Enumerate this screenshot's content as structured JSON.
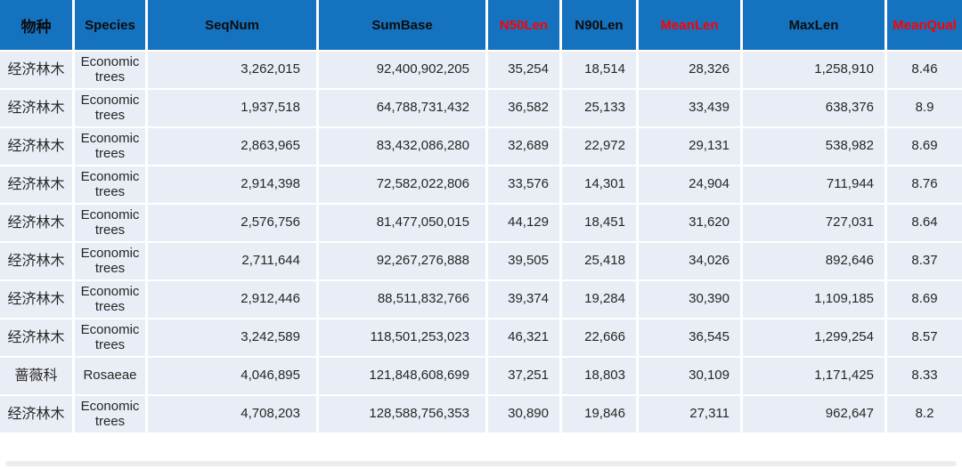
{
  "colors": {
    "header_bg": "#1572be",
    "header_text_black": "#0c0c0c",
    "header_text_red": "#ff0000",
    "row_bg": "#e9eef6",
    "cell_text": "#262626",
    "gridline": "#ffffff"
  },
  "table": {
    "columns": [
      {
        "key": "species_cn",
        "label": "物种",
        "red": false,
        "cn": true
      },
      {
        "key": "species_en",
        "label": "Species",
        "red": false,
        "cn": false
      },
      {
        "key": "seqnum",
        "label": "SeqNum",
        "red": false,
        "cn": false
      },
      {
        "key": "sumbase",
        "label": "SumBase",
        "red": false,
        "cn": false
      },
      {
        "key": "n50len",
        "label": "N50Len",
        "red": true,
        "cn": false
      },
      {
        "key": "n90len",
        "label": "N90Len",
        "red": false,
        "cn": false
      },
      {
        "key": "meanlen",
        "label": "MeanLen",
        "red": true,
        "cn": false
      },
      {
        "key": "maxlen",
        "label": "MaxLen",
        "red": false,
        "cn": false
      },
      {
        "key": "meanqual",
        "label": "MeanQual",
        "red": true,
        "cn": false
      }
    ],
    "rows": [
      {
        "species_cn": "经济林木",
        "species_en": "Economic trees",
        "seqnum": "3,262,015",
        "sumbase": "92,400,902,205",
        "n50len": "35,254",
        "n90len": "18,514",
        "meanlen": "28,326",
        "maxlen": "1,258,910",
        "meanqual": "8.46"
      },
      {
        "species_cn": "经济林木",
        "species_en": "Economic trees",
        "seqnum": "1,937,518",
        "sumbase": "64,788,731,432",
        "n50len": "36,582",
        "n90len": "25,133",
        "meanlen": "33,439",
        "maxlen": "638,376",
        "meanqual": "8.9"
      },
      {
        "species_cn": "经济林木",
        "species_en": "Economic trees",
        "seqnum": "2,863,965",
        "sumbase": "83,432,086,280",
        "n50len": "32,689",
        "n90len": "22,972",
        "meanlen": "29,131",
        "maxlen": "538,982",
        "meanqual": "8.69"
      },
      {
        "species_cn": "经济林木",
        "species_en": "Economic trees",
        "seqnum": "2,914,398",
        "sumbase": "72,582,022,806",
        "n50len": "33,576",
        "n90len": "14,301",
        "meanlen": "24,904",
        "maxlen": "711,944",
        "meanqual": "8.76"
      },
      {
        "species_cn": "经济林木",
        "species_en": "Economic trees",
        "seqnum": "2,576,756",
        "sumbase": "81,477,050,015",
        "n50len": "44,129",
        "n90len": "18,451",
        "meanlen": "31,620",
        "maxlen": "727,031",
        "meanqual": "8.64"
      },
      {
        "species_cn": "经济林木",
        "species_en": "Economic trees",
        "seqnum": "2,711,644",
        "sumbase": "92,267,276,888",
        "n50len": "39,505",
        "n90len": "25,418",
        "meanlen": "34,026",
        "maxlen": "892,646",
        "meanqual": "8.37"
      },
      {
        "species_cn": "经济林木",
        "species_en": "Economic trees",
        "seqnum": "2,912,446",
        "sumbase": "88,511,832,766",
        "n50len": "39,374",
        "n90len": "19,284",
        "meanlen": "30,390",
        "maxlen": "1,109,185",
        "meanqual": "8.69"
      },
      {
        "species_cn": "经济林木",
        "species_en": "Economic trees",
        "seqnum": "3,242,589",
        "sumbase": "118,501,253,023",
        "n50len": "46,321",
        "n90len": "22,666",
        "meanlen": "36,545",
        "maxlen": "1,299,254",
        "meanqual": "8.57"
      },
      {
        "species_cn": "蔷薇科",
        "species_en": "Rosaeae",
        "seqnum": "4,046,895",
        "sumbase": "121,848,608,699",
        "n50len": "37,251",
        "n90len": "18,803",
        "meanlen": "30,109",
        "maxlen": "1,171,425",
        "meanqual": "8.33"
      },
      {
        "species_cn": "经济林木",
        "species_en": "Economic trees",
        "seqnum": "4,708,203",
        "sumbase": "128,588,756,353",
        "n50len": "30,890",
        "n90len": "19,846",
        "meanlen": "27,311",
        "maxlen": "962,647",
        "meanqual": "8.2"
      }
    ]
  },
  "chart_data": {
    "type": "table",
    "title": "",
    "columns": [
      "物种",
      "Species",
      "SeqNum",
      "SumBase",
      "N50Len",
      "N90Len",
      "MeanLen",
      "MaxLen",
      "MeanQual"
    ],
    "red_columns": [
      "N50Len",
      "MeanLen",
      "MeanQual"
    ],
    "rows": [
      [
        "经济林木",
        "Economic trees",
        "3,262,015",
        "92,400,902,205",
        "35,254",
        "18,514",
        "28,326",
        "1,258,910",
        "8.46"
      ],
      [
        "经济林木",
        "Economic trees",
        "1,937,518",
        "64,788,731,432",
        "36,582",
        "25,133",
        "33,439",
        "638,376",
        "8.9"
      ],
      [
        "经济林木",
        "Economic trees",
        "2,863,965",
        "83,432,086,280",
        "32,689",
        "22,972",
        "29,131",
        "538,982",
        "8.69"
      ],
      [
        "经济林木",
        "Economic trees",
        "2,914,398",
        "72,582,022,806",
        "33,576",
        "14,301",
        "24,904",
        "711,944",
        "8.76"
      ],
      [
        "经济林木",
        "Economic trees",
        "2,576,756",
        "81,477,050,015",
        "44,129",
        "18,451",
        "31,620",
        "727,031",
        "8.64"
      ],
      [
        "经济林木",
        "Economic trees",
        "2,711,644",
        "92,267,276,888",
        "39,505",
        "25,418",
        "34,026",
        "892,646",
        "8.37"
      ],
      [
        "经济林木",
        "Economic trees",
        "2,912,446",
        "88,511,832,766",
        "39,374",
        "19,284",
        "30,390",
        "1,109,185",
        "8.69"
      ],
      [
        "经济林木",
        "Economic trees",
        "3,242,589",
        "118,501,253,023",
        "46,321",
        "22,666",
        "36,545",
        "1,299,254",
        "8.57"
      ],
      [
        "蔷薇科",
        "Rosaeae",
        "4,046,895",
        "121,848,608,699",
        "37,251",
        "18,803",
        "30,109",
        "1,171,425",
        "8.33"
      ],
      [
        "经济林木",
        "Economic trees",
        "4,708,203",
        "128,588,756,353",
        "30,890",
        "19,846",
        "27,311",
        "962,647",
        "8.2"
      ]
    ]
  }
}
